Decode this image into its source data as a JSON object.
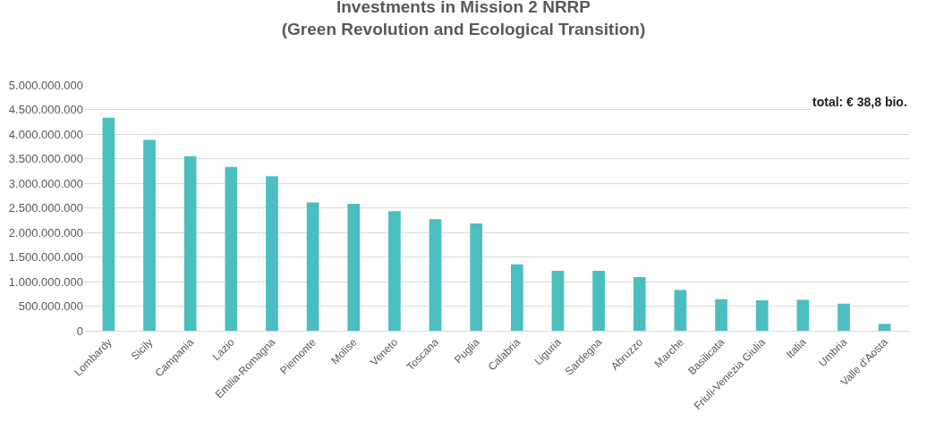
{
  "chart_data": {
    "type": "bar",
    "title": "Investments in Mission 2 NRRP\n(Green Revolution and Ecological Transition)",
    "categories": [
      "Lombardy",
      "Sicily",
      "Campania",
      "Lazio",
      "Emilia-Romagna",
      "Piemonte",
      "Molise",
      "Veneto",
      "Toscana",
      "Puglia",
      "Calabria",
      "Liguria",
      "Sardegna",
      "Abruzzo",
      "Marche",
      "Basilicata",
      "Friuli-Venezia Giulia",
      "Italia",
      "Umbria",
      "Valle d'Aosta"
    ],
    "values": [
      4330000000,
      3880000000,
      3550000000,
      3330000000,
      3140000000,
      2610000000,
      2580000000,
      2430000000,
      2270000000,
      2180000000,
      1350000000,
      1220000000,
      1220000000,
      1090000000,
      830000000,
      640000000,
      620000000,
      630000000,
      550000000,
      140000000
    ],
    "color": "#4bbfc0",
    "ylim": [
      0,
      5000000000
    ],
    "yticks": [
      {
        "value": 0,
        "label": "0"
      },
      {
        "value": 500000000,
        "label": "500.000.000"
      },
      {
        "value": 1000000000,
        "label": "1.000.000.000"
      },
      {
        "value": 1500000000,
        "label": "1.500.000.000"
      },
      {
        "value": 2000000000,
        "label": "2.000.000.000"
      },
      {
        "value": 2500000000,
        "label": "2.500.000.000"
      },
      {
        "value": 3000000000,
        "label": "3.000.000.000"
      },
      {
        "value": 3500000000,
        "label": "3.500.000.000"
      },
      {
        "value": 4000000000,
        "label": "4.000.000.000"
      },
      {
        "value": 4500000000,
        "label": "4.500.000.000"
      },
      {
        "value": 5000000000,
        "label": "5.000.000.000"
      }
    ],
    "grid": "y",
    "annotations": [
      "total: € 38,8 bio."
    ]
  }
}
